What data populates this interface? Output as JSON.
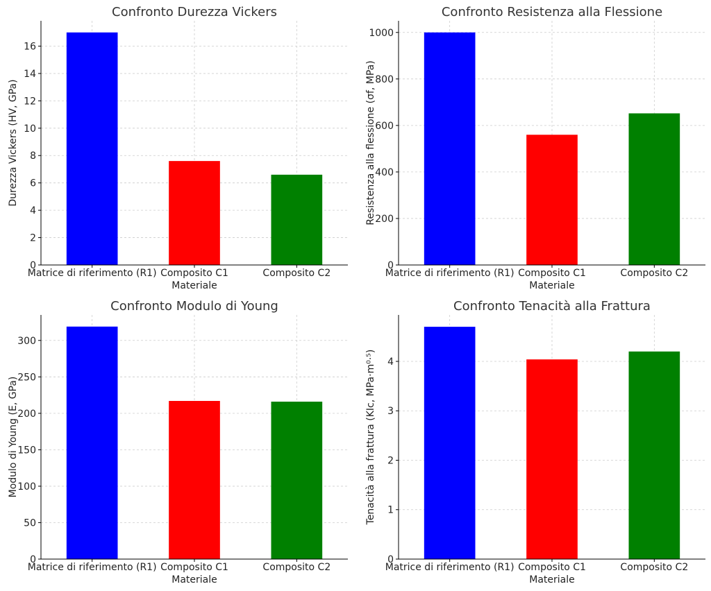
{
  "chart_data": [
    {
      "type": "bar",
      "title": "Confronto Durezza Vickers",
      "xlabel": "Materiale",
      "ylabel": "Durezza Vickers (HV, GPa)",
      "categories": [
        "Matrice di riferimento (R1)",
        "Composito C1",
        "Composito C2"
      ],
      "values": [
        17.0,
        7.6,
        6.6
      ],
      "colors": [
        "#0000ff",
        "#ff0000",
        "#008000"
      ],
      "ylim": [
        0,
        17.85
      ],
      "yticks": [
        0,
        2,
        4,
        6,
        8,
        10,
        12,
        14,
        16
      ],
      "ytick_labels": [
        "0",
        "2",
        "4",
        "6",
        "8",
        "10",
        "12",
        "14",
        "16"
      ],
      "grid": true
    },
    {
      "type": "bar",
      "title": "Confronto Resistenza alla Flessione",
      "xlabel": "Materiale",
      "ylabel": "Resistenza alla flessione (σf, MPa)",
      "categories": [
        "Matrice di riferimento (R1)",
        "Composito C1",
        "Composito C2"
      ],
      "values": [
        1000,
        560,
        652
      ],
      "colors": [
        "#0000ff",
        "#ff0000",
        "#008000"
      ],
      "ylim": [
        0,
        1050
      ],
      "yticks": [
        0,
        200,
        400,
        600,
        800,
        1000
      ],
      "ytick_labels": [
        "0",
        "200",
        "400",
        "600",
        "800",
        "1000"
      ],
      "grid": true
    },
    {
      "type": "bar",
      "title": "Confronto Modulo di Young",
      "xlabel": "Materiale",
      "ylabel": "Modulo di Young (E, GPa)",
      "categories": [
        "Matrice di riferimento (R1)",
        "Composito C1",
        "Composito C2"
      ],
      "values": [
        319,
        217,
        216
      ],
      "colors": [
        "#0000ff",
        "#ff0000",
        "#008000"
      ],
      "ylim": [
        0,
        335
      ],
      "yticks": [
        0,
        50,
        100,
        150,
        200,
        250,
        300
      ],
      "ytick_labels": [
        "0",
        "50",
        "100",
        "150",
        "200",
        "250",
        "300"
      ],
      "grid": true
    },
    {
      "type": "bar",
      "title": "Confronto Tenacità alla Frattura",
      "xlabel": "Materiale",
      "ylabel": "Tenacità alla frattura (KIc, MPa·m⁰·⁵)",
      "categories": [
        "Matrice di riferimento (R1)",
        "Composito C1",
        "Composito C2"
      ],
      "values": [
        4.7,
        4.04,
        4.2
      ],
      "colors": [
        "#0000ff",
        "#ff0000",
        "#008000"
      ],
      "ylim": [
        0,
        4.94
      ],
      "yticks": [
        0,
        1,
        2,
        3,
        4
      ],
      "ytick_labels": [
        "0",
        "1",
        "2",
        "3",
        "4"
      ],
      "grid": true
    }
  ]
}
